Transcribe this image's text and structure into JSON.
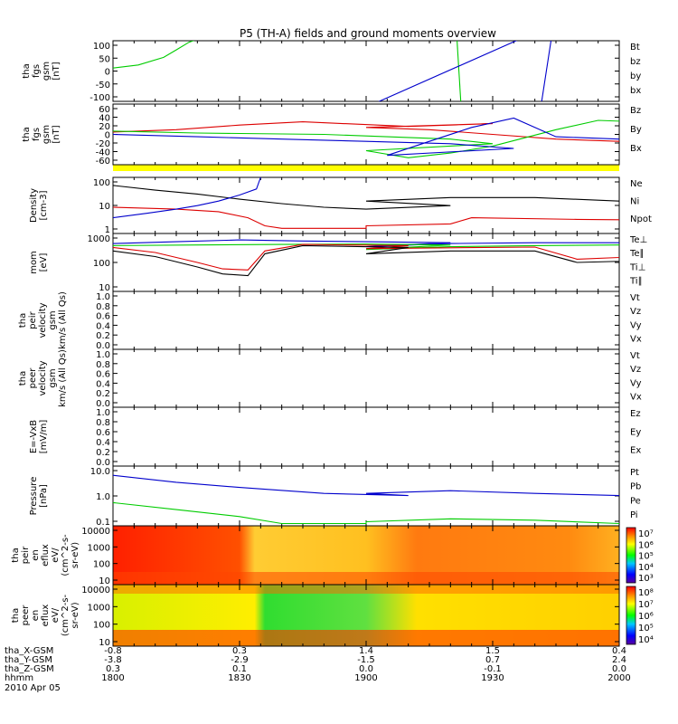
{
  "chart_data": {
    "type": "line",
    "title": "P5 (TH-A) fields and ground moments overview",
    "x_ticks": [
      "1800",
      "1830",
      "1900",
      "1930",
      "2000"
    ],
    "x_range": [
      "1800",
      "2000"
    ],
    "ephemeris": [
      {
        "label": "tha_X-GSM",
        "values": [
          "-0.8",
          "0.3",
          "1.4",
          "1.5",
          "0.4"
        ]
      },
      {
        "label": "tha_Y-GSM",
        "values": [
          "-3.8",
          "-2.9",
          "-1.5",
          "0.7",
          "2.4"
        ]
      },
      {
        "label": "tha_Z-GSM",
        "values": [
          "0.3",
          "0.1",
          "0.0",
          "-0.1",
          "0.0"
        ]
      },
      {
        "label": "hhmm",
        "values": []
      }
    ],
    "date_label": "2010 Apr 05",
    "panels": [
      {
        "id": "p1",
        "ylabel": [
          "tha",
          "fgs",
          "gsm",
          "[nT]"
        ],
        "y_ticks": [
          "100",
          "50",
          "0",
          "-50",
          "-100"
        ],
        "ylim": [
          -100,
          100
        ],
        "legend": [
          {
            "name": "Bt",
            "color": "#000000"
          },
          {
            "name": "bz",
            "color": "#dd0000"
          },
          {
            "name": "by",
            "color": "#00cc00"
          },
          {
            "name": "bx",
            "color": "#0000cc"
          }
        ],
        "series": [
          {
            "name": "by",
            "color": "#00cc00",
            "x": [
              1800,
              1806,
              1812,
              1815,
              1818,
              1822
            ],
            "y": [
              10,
              20,
              45,
              70,
              95,
              115
            ]
          },
          {
            "name": "by",
            "color": "#00cc00",
            "x": [
              1921.5,
              1922.5
            ],
            "y": [
              115,
              -115
            ]
          },
          {
            "name": "bx",
            "color": "#0000cc",
            "x": [
              1898,
              1901.5
            ],
            "y": [
              115,
              -110
            ]
          },
          {
            "name": "bx",
            "color": "#0000cc",
            "x": [
              1941.5,
              1944
            ],
            "y": [
              -110,
              115
            ]
          }
        ]
      },
      {
        "id": "p2",
        "ylabel": [
          "tha",
          "fgs",
          "gsm",
          "[nT]"
        ],
        "y_ticks": [
          "60",
          "40",
          "20",
          "0",
          "-20",
          "-40",
          "-60"
        ],
        "ylim": [
          -70,
          60
        ],
        "legend": [
          {
            "name": "Bz",
            "color": "#dd0000"
          },
          {
            "name": "By",
            "color": "#00cc00"
          },
          {
            "name": "Bx",
            "color": "#0000cc"
          }
        ],
        "series": [
          {
            "name": "Bz",
            "color": "#dd0000",
            "x": [
              1800,
              1815,
              1830,
              1845,
              1870,
              1880,
              1890,
              1900,
              1915,
              1930,
              1945,
              1960,
              1980,
              2000
            ],
            "y": [
              0,
              5,
              15,
              22,
              12,
              15,
              18,
              10,
              5,
              -5,
              -15,
              -20,
              -25,
              -10
            ]
          },
          {
            "name": "By",
            "color": "#00cc00",
            "x": [
              1800,
              1820,
              1850,
              1880,
              1890,
              1900,
              1910,
              1920,
              1930,
              1945,
              1955,
              1970,
              1985,
              2000
            ],
            "y": [
              2,
              -2,
              -5,
              -15,
              -25,
              -40,
              -55,
              -45,
              -30,
              5,
              25,
              20,
              15,
              10
            ]
          },
          {
            "name": "Bx",
            "color": "#0000cc",
            "x": [
              1800,
              1820,
              1840,
              1860,
              1880,
              1895,
              1905,
              1915,
              1925,
              1935,
              1945,
              1960,
              1975,
              1990,
              2000
            ],
            "y": [
              -5,
              -10,
              -15,
              -20,
              -25,
              -35,
              -50,
              -20,
              10,
              30,
              -10,
              -15,
              -20,
              -25,
              -25
            ]
          }
        ]
      },
      {
        "id": "p3",
        "ylabel": [
          "Density",
          "[cm-3]"
        ],
        "y_ticks": [
          "100",
          "10",
          "1"
        ],
        "scale": "log",
        "ylim": [
          0.5,
          300
        ],
        "legend": [
          {
            "name": "Ne",
            "color": "#dd0000"
          },
          {
            "name": "Ni",
            "color": "#000000"
          },
          {
            "name": "Npot",
            "color": "#0000cc"
          }
        ],
        "series": [
          {
            "name": "Ni",
            "color": "#000000",
            "x": [
              1800,
              1810,
              1820,
              1830,
              1840,
              1850,
              1860,
              1880,
              1900,
              1920,
              1940,
              1960,
              1980,
              2000
            ],
            "y": [
              120,
              70,
              45,
              25,
              15,
              10,
              8,
              12,
              20,
              30,
              30,
              20,
              15,
              10
            ]
          },
          {
            "name": "Ne",
            "color": "#dd0000",
            "x": [
              1800,
              1815,
              1825,
              1832,
              1836,
              1840,
              1860,
              1900,
              1920,
              1925,
              1950,
              1980,
              2000
            ],
            "y": [
              10,
              8,
              6,
              3,
              1.2,
              0.9,
              0.9,
              1.2,
              1.5,
              3,
              2.5,
              2.2,
              1.8
            ]
          },
          {
            "name": "Npot",
            "color": "#0000cc",
            "x": [
              1800,
              1808,
              1815,
              1820,
              1825,
              1830,
              1834,
              1835
            ],
            "y": [
              3,
              5,
              8,
              12,
              20,
              40,
              80,
              300
            ]
          }
        ]
      },
      {
        "id": "p4",
        "ylabel": [
          "mom",
          "[eV]"
        ],
        "y_ticks": [
          "1000",
          "100",
          "10"
        ],
        "scale": "log",
        "ylim": [
          10,
          1000
        ],
        "legend": [
          {
            "name": "Te⊥",
            "color": "#dd0000"
          },
          {
            "name": "Te∥",
            "color": "#000000"
          },
          {
            "name": "Ti⊥",
            "color": "#0000cc"
          },
          {
            "name": "Ti∥",
            "color": "#00cc00"
          }
        ],
        "series": [
          {
            "name": "Ti⊥",
            "color": "#0000cc",
            "x": [
              1800,
              1815,
              1830,
              1845,
              1860,
              1880,
              1900,
              1920,
              1940,
              1960,
              1980,
              2000
            ],
            "y": [
              450,
              520,
              600,
              550,
              520,
              480,
              350,
              450,
              480,
              480,
              480,
              470
            ]
          },
          {
            "name": "Ti∥",
            "color": "#00cc00",
            "x": [
              1800,
              1820,
              1840,
              1860,
              1880,
              1900,
              1920,
              1940,
              1960,
              1980,
              2000
            ],
            "y": [
              380,
              400,
              420,
              430,
              400,
              280,
              350,
              380,
              400,
              410,
              420
            ]
          },
          {
            "name": "Te⊥",
            "color": "#dd0000",
            "x": [
              1800,
              1810,
              1820,
              1826,
              1832,
              1836,
              1845,
              1870,
              1900,
              1920,
              1940,
              1950,
              1970,
              1990,
              2000
            ],
            "y": [
              330,
              220,
              100,
              60,
              55,
              250,
              420,
              380,
              300,
              320,
              340,
              130,
              170,
              250,
              400
            ]
          },
          {
            "name": "Te∥",
            "color": "#000000",
            "x": [
              1800,
              1810,
              1820,
              1826,
              1832,
              1836,
              1845,
              1870,
              1900,
              1920,
              1940,
              1950,
              1970,
              1990,
              2000
            ],
            "y": [
              250,
              160,
              70,
              40,
              35,
              200,
              380,
              330,
              200,
              250,
              250,
              100,
              120,
              200,
              330
            ]
          }
        ]
      },
      {
        "id": "p5",
        "ylabel": [
          "tha",
          "peir",
          "velocity",
          "gsm",
          "km/s (All Qs)"
        ],
        "y_ticks": [
          "1.0",
          "0.8",
          "0.6",
          "0.4",
          "0.2",
          "0.0"
        ],
        "ylim": [
          0,
          1
        ],
        "legend": [
          {
            "name": "Vt",
            "color": "#000000"
          },
          {
            "name": "Vz",
            "color": "#dd0000"
          },
          {
            "name": "Vy",
            "color": "#00cc00"
          },
          {
            "name": "Vx",
            "color": "#0000cc"
          }
        ],
        "series": []
      },
      {
        "id": "p6",
        "ylabel": [
          "tha",
          "peer",
          "velocity",
          "gsm",
          "km/s (All Qs)"
        ],
        "y_ticks": [
          "1.0",
          "0.8",
          "0.6",
          "0.4",
          "0.2",
          "0.0"
        ],
        "ylim": [
          0,
          1
        ],
        "legend": [
          {
            "name": "Vt",
            "color": "#000000"
          },
          {
            "name": "Vz",
            "color": "#dd0000"
          },
          {
            "name": "Vy",
            "color": "#00cc00"
          },
          {
            "name": "Vx",
            "color": "#0000cc"
          }
        ],
        "series": []
      },
      {
        "id": "p7",
        "ylabel": [
          "E=-VxB",
          "[mV/m]"
        ],
        "y_ticks": [
          "1.0",
          "0.8",
          "0.6",
          "0.4",
          "0.2",
          "0.0"
        ],
        "ylim": [
          0,
          1
        ],
        "legend": [
          {
            "name": "Ez",
            "color": "#dd0000"
          },
          {
            "name": "Ey",
            "color": "#00cc00"
          },
          {
            "name": "Ex",
            "color": "#0000cc"
          }
        ],
        "series": []
      },
      {
        "id": "p8",
        "ylabel": [
          "Pressure",
          "[nPa]"
        ],
        "y_ticks": [
          "10.0",
          "1.0",
          "0.1"
        ],
        "scale": "log",
        "ylim": [
          0.04,
          15
        ],
        "legend": [
          {
            "name": "Pt",
            "color": "#000000"
          },
          {
            "name": "Pb",
            "color": "#dd0000"
          },
          {
            "name": "Pe",
            "color": "#00cc00"
          },
          {
            "name": "Pi",
            "color": "#0000cc"
          }
        ],
        "series": [
          {
            "name": "Pi",
            "color": "#0000cc",
            "x": [
              1800,
              1815,
              1830,
              1850,
              1870,
              1900,
              1920,
              1940,
              1960,
              1980,
              2000
            ],
            "y": [
              6,
              3,
              1.8,
              1.0,
              0.8,
              1.0,
              1.3,
              1.0,
              0.8,
              0.6,
              0.4
            ]
          },
          {
            "name": "Pe",
            "color": "#00cc00",
            "x": [
              1800,
              1815,
              1830,
              1840,
              1860,
              1900,
              1920,
              1940,
              1960,
              1980,
              2000
            ],
            "y": [
              0.4,
              0.2,
              0.1,
              0.05,
              0.05,
              0.06,
              0.08,
              0.07,
              0.05,
              0.04,
              0.07
            ]
          }
        ]
      },
      {
        "id": "p9",
        "ylabel": [
          "tha",
          "peir",
          "en",
          "eflux",
          "eV/",
          "(cm^2-s-",
          "sr-eV)"
        ],
        "y_ticks": [
          "10000",
          "1000",
          "100",
          "10"
        ],
        "type": "spectrogram",
        "colorbar_ticks": [
          "10^7",
          "10^6",
          "10^5",
          "10^4",
          "10^3"
        ]
      },
      {
        "id": "p10",
        "ylabel": [
          "tha",
          "peer",
          "en",
          "eflux",
          "eV/",
          "(cm^2-s-",
          "sr-eV)"
        ],
        "y_ticks": [
          "10000",
          "1000",
          "100",
          "10"
        ],
        "type": "spectrogram",
        "colorbar_ticks": [
          "10^8",
          "10^7",
          "10^6",
          "10^5",
          "10^4"
        ]
      }
    ]
  }
}
